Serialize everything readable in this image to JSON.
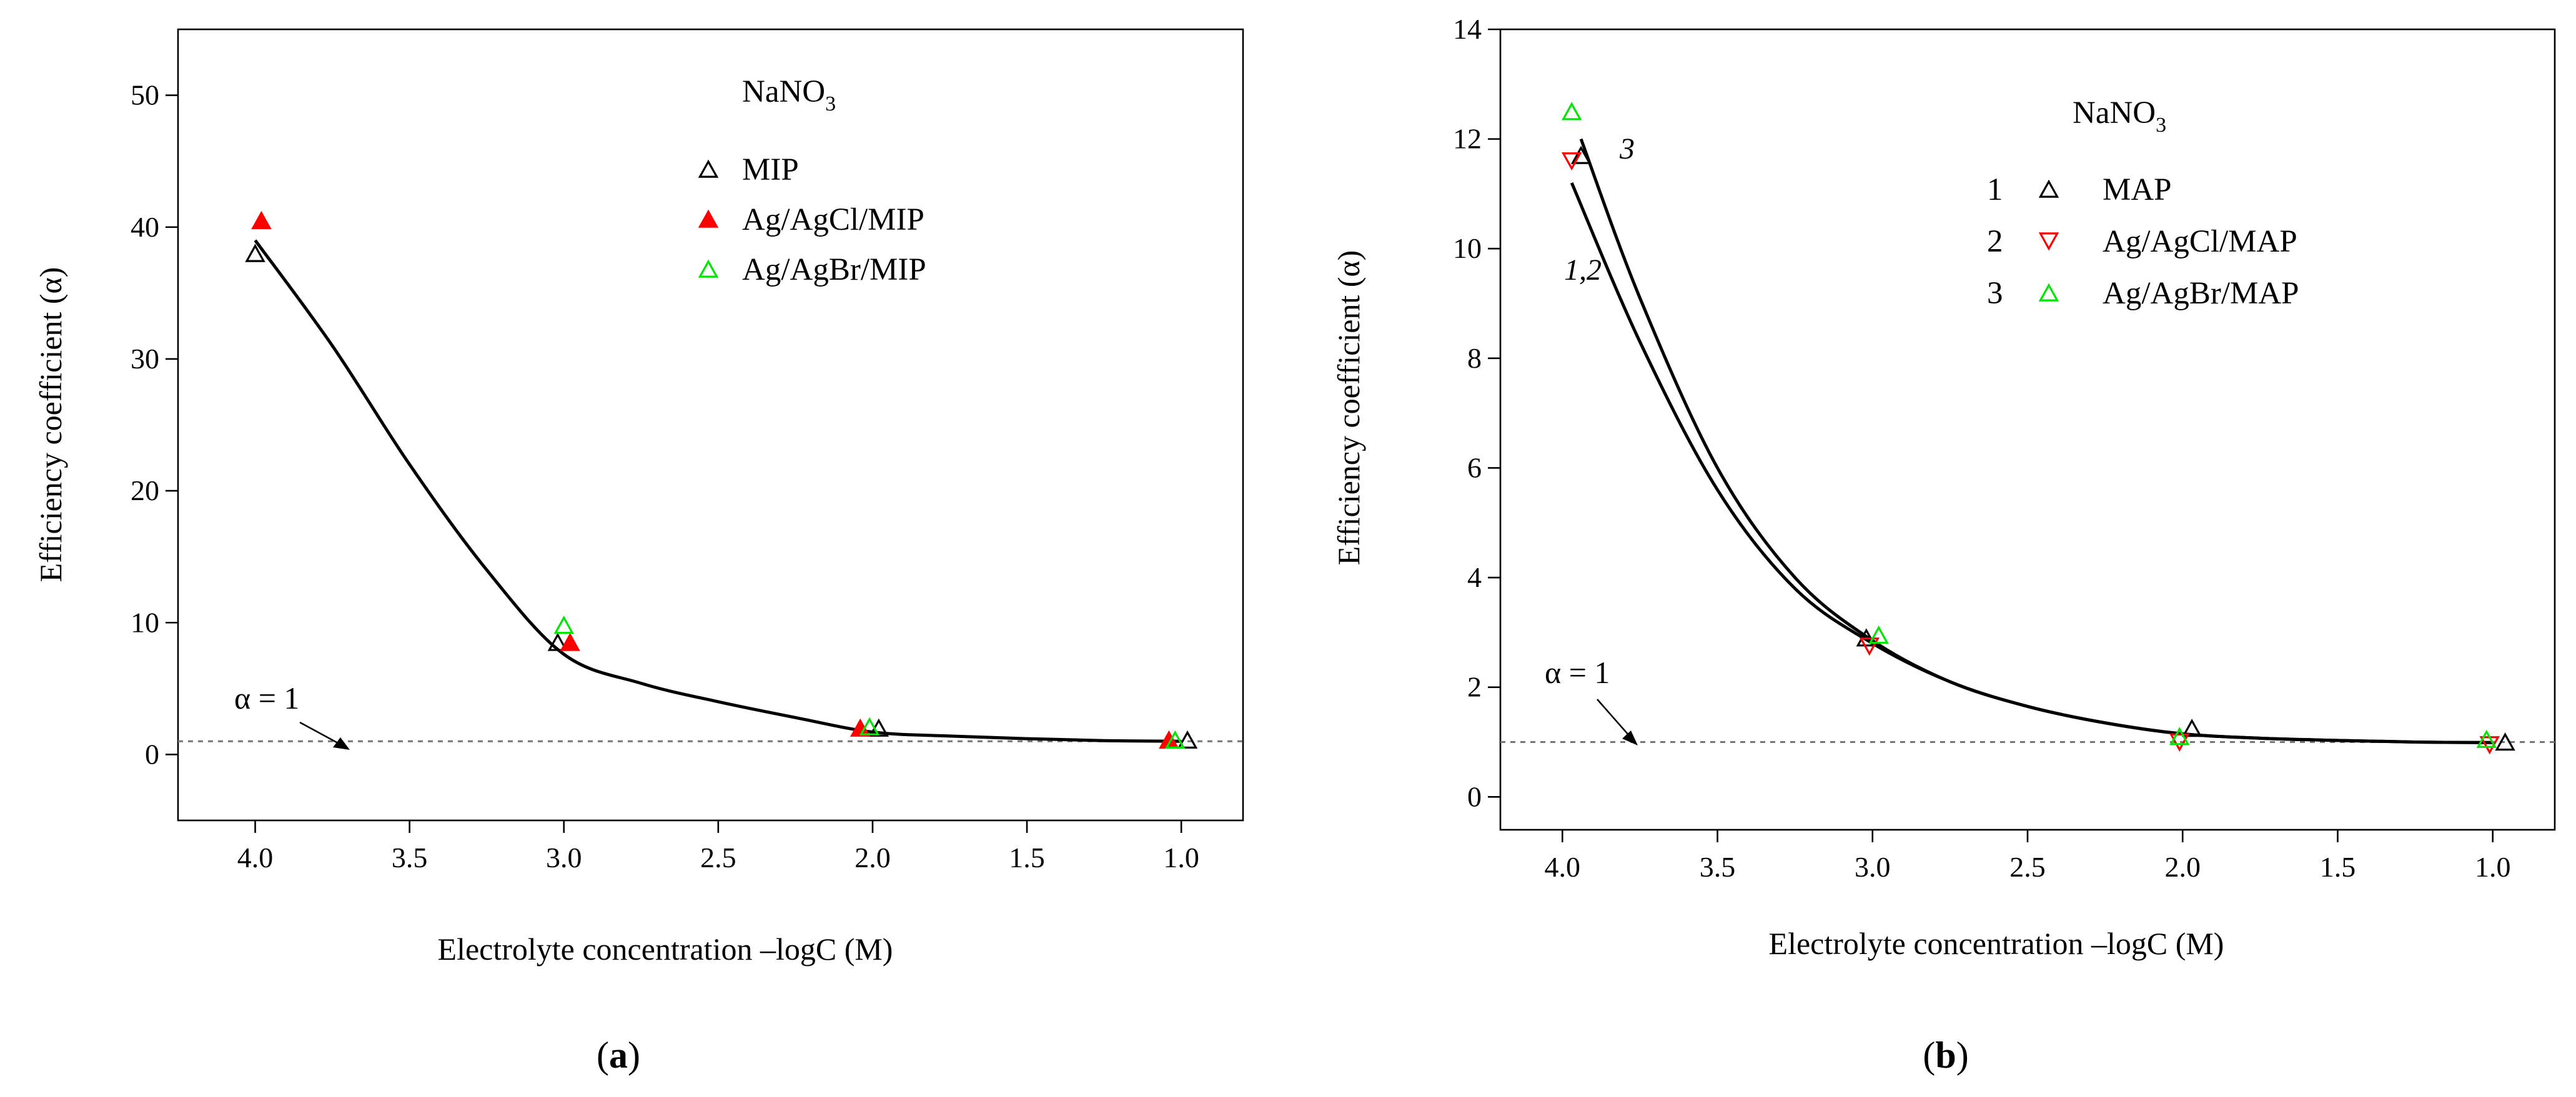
{
  "chart_data": [
    {
      "type": "scatter",
      "panel_label_text": "(",
      "panel_letter": "a",
      "panel_label_suffix": ")",
      "legend_title_prefix": "NaNO",
      "legend_title_subscript": "3",
      "xlabel": "Electrolyte concentration –logC (M)",
      "ylabel": "Efficiency coefficient (α)",
      "xlim": [
        4.25,
        0.8
      ],
      "ylim": [
        -5,
        55
      ],
      "x_ticks": [
        4.0,
        3.5,
        3.0,
        2.5,
        2.0,
        1.5,
        1.0
      ],
      "x_tick_labels": [
        "4.0",
        "3.5",
        "3.0",
        "2.5",
        "2.0",
        "1.5",
        "1.0"
      ],
      "y_ticks": [
        0,
        10,
        20,
        30,
        40,
        50
      ],
      "y_tick_labels": [
        "0",
        "10",
        "20",
        "30",
        "40",
        "50"
      ],
      "reference_line": {
        "y": 1,
        "label": "α = 1"
      },
      "series": [
        {
          "name": "MIP",
          "marker": "triangle-open",
          "color": "#000000",
          "points": [
            {
              "x": 4.0,
              "y": 38
            },
            {
              "x": 3.02,
              "y": 8.5
            },
            {
              "x": 1.98,
              "y": 2.0
            },
            {
              "x": 0.98,
              "y": 1.1
            }
          ]
        },
        {
          "name": "Ag/AgCl/MIP",
          "marker": "triangle-filled",
          "color": "#ff0000",
          "points": [
            {
              "x": 3.98,
              "y": 40.5
            },
            {
              "x": 2.98,
              "y": 8.5
            },
            {
              "x": 2.04,
              "y": 2.0
            },
            {
              "x": 1.04,
              "y": 1.1
            }
          ]
        },
        {
          "name": "Ag/AgBr/MIP",
          "marker": "triangle-open",
          "color": "#00e600",
          "points": [
            {
              "x": 3.0,
              "y": 9.8
            },
            {
              "x": 2.01,
              "y": 2.1
            },
            {
              "x": 1.02,
              "y": 1.1
            }
          ]
        }
      ],
      "curves": [
        {
          "name": "fit",
          "points": [
            {
              "x": 4.0,
              "y": 39.0
            },
            {
              "x": 3.75,
              "y": 31.0
            },
            {
              "x": 3.5,
              "y": 22.0
            },
            {
              "x": 3.25,
              "y": 14.0
            },
            {
              "x": 3.0,
              "y": 7.6
            },
            {
              "x": 2.75,
              "y": 5.4
            },
            {
              "x": 2.5,
              "y": 4.0
            },
            {
              "x": 2.25,
              "y": 2.8
            },
            {
              "x": 2.0,
              "y": 1.7
            },
            {
              "x": 1.75,
              "y": 1.4
            },
            {
              "x": 1.5,
              "y": 1.2
            },
            {
              "x": 1.25,
              "y": 1.05
            },
            {
              "x": 1.0,
              "y": 1.0
            }
          ]
        }
      ]
    },
    {
      "type": "scatter",
      "panel_label_text": "(",
      "panel_letter": "b",
      "panel_label_suffix": ")",
      "legend_title_prefix": "NaNO",
      "legend_title_subscript": "3",
      "xlabel": "Electrolyte concentration –logC (M)",
      "ylabel": "Efficiency coefficient (α)",
      "xlim": [
        4.2,
        0.8
      ],
      "ylim": [
        -0.6,
        14
      ],
      "x_ticks": [
        4.0,
        3.5,
        3.0,
        2.5,
        2.0,
        1.5,
        1.0
      ],
      "x_tick_labels": [
        "4.0",
        "3.5",
        "3.0",
        "2.5",
        "2.0",
        "1.5",
        "1.0"
      ],
      "y_ticks": [
        0,
        2,
        4,
        6,
        8,
        10,
        12,
        14
      ],
      "y_tick_labels": [
        "0",
        "2",
        "4",
        "6",
        "8",
        "10",
        "12",
        "14"
      ],
      "reference_line": {
        "y": 1,
        "label": "α = 1"
      },
      "series": [
        {
          "name": "MAP",
          "number": "1",
          "marker": "triangle-open",
          "color": "#000000",
          "points": [
            {
              "x": 3.94,
              "y": 11.7
            },
            {
              "x": 3.02,
              "y": 2.9
            },
            {
              "x": 1.97,
              "y": 1.25
            },
            {
              "x": 0.96,
              "y": 1.0
            }
          ]
        },
        {
          "name": "Ag/AgCl/MAP",
          "number": "2",
          "marker": "triangle-down-open",
          "color": "#ff0000",
          "points": [
            {
              "x": 3.97,
              "y": 11.6
            },
            {
              "x": 3.01,
              "y": 2.75
            },
            {
              "x": 2.01,
              "y": 1.0
            },
            {
              "x": 1.01,
              "y": 0.95
            }
          ]
        },
        {
          "name": "Ag/AgBr/MAP",
          "number": "3",
          "marker": "triangle-open",
          "color": "#00e600",
          "points": [
            {
              "x": 3.97,
              "y": 12.5
            },
            {
              "x": 2.98,
              "y": 2.95
            },
            {
              "x": 2.01,
              "y": 1.1
            },
            {
              "x": 1.02,
              "y": 1.05
            }
          ]
        }
      ],
      "curves": [
        {
          "name": "fit-1,2",
          "label": "1,2",
          "points": [
            {
              "x": 3.97,
              "y": 11.2
            },
            {
              "x": 3.75,
              "y": 8.3
            },
            {
              "x": 3.5,
              "y": 5.6
            },
            {
              "x": 3.25,
              "y": 3.8
            },
            {
              "x": 3.0,
              "y": 2.8
            },
            {
              "x": 2.75,
              "y": 2.1
            },
            {
              "x": 2.5,
              "y": 1.65
            },
            {
              "x": 2.25,
              "y": 1.35
            },
            {
              "x": 2.0,
              "y": 1.15
            },
            {
              "x": 1.75,
              "y": 1.07
            },
            {
              "x": 1.5,
              "y": 1.03
            },
            {
              "x": 1.25,
              "y": 1.0
            },
            {
              "x": 1.0,
              "y": 0.99
            }
          ]
        },
        {
          "name": "fit-3",
          "label": "3",
          "points": [
            {
              "x": 3.94,
              "y": 12.0
            },
            {
              "x": 3.75,
              "y": 9.1
            },
            {
              "x": 3.5,
              "y": 6.0
            },
            {
              "x": 3.25,
              "y": 4.0
            },
            {
              "x": 3.0,
              "y": 2.85
            },
            {
              "x": 2.75,
              "y": 2.1
            },
            {
              "x": 2.5,
              "y": 1.65
            },
            {
              "x": 2.25,
              "y": 1.35
            },
            {
              "x": 2.0,
              "y": 1.15
            },
            {
              "x": 1.75,
              "y": 1.07
            },
            {
              "x": 1.5,
              "y": 1.03
            },
            {
              "x": 1.25,
              "y": 1.0
            },
            {
              "x": 1.0,
              "y": 0.99
            }
          ]
        }
      ]
    }
  ]
}
